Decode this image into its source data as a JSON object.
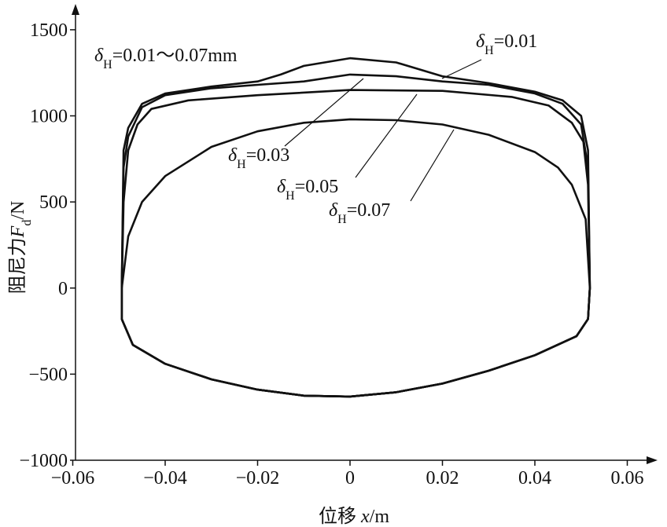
{
  "chart_data": {
    "type": "line",
    "annotation": {
      "symbol": "δ",
      "sub": "H",
      "text": "=0.01～0.07mm"
    },
    "x_label": {
      "prefix": "位移 ",
      "var": "x",
      "unit": "/m"
    },
    "y_label": {
      "prefix": "阻尼力",
      "var": "F",
      "sub": "d",
      "unit": "/N"
    },
    "xlim": [
      -0.06,
      0.0665
    ],
    "ylim": [
      -1000,
      1650
    ],
    "xticks": [
      {
        "value": -0.06,
        "label": "−0.06"
      },
      {
        "value": -0.04,
        "label": "−0.04"
      },
      {
        "value": -0.02,
        "label": "−0.02"
      },
      0,
      0.02,
      0.04,
      0.06
    ],
    "yticks": [
      {
        "value": -1000,
        "label": "−1000"
      },
      {
        "value": -500,
        "label": "−500"
      },
      0,
      500,
      1000,
      1500
    ],
    "series": [
      {
        "name": {
          "symbol": "δ",
          "sub": "H",
          "text": "=0.01"
        },
        "color": "#111111",
        "x": [
          -0.0494,
          -0.049,
          -0.048,
          -0.045,
          -0.04,
          -0.03,
          -0.02,
          -0.015,
          -0.01,
          0,
          0.01,
          0.02,
          0.03,
          0.04,
          0.046,
          0.05,
          0.0515,
          0.0519,
          0.0515,
          0.049,
          0.04,
          0.03,
          0.02,
          0.01,
          0,
          -0.01,
          -0.02,
          -0.03,
          -0.04,
          -0.047,
          -0.0494,
          -0.0494
        ],
        "y": [
          0,
          800,
          930,
          1070,
          1130,
          1170,
          1200,
          1240,
          1290,
          1335,
          1310,
          1230,
          1190,
          1140,
          1090,
          1000,
          800,
          0,
          -180,
          -280,
          -390,
          -480,
          -555,
          -605,
          -630,
          -625,
          -590,
          -530,
          -440,
          -330,
          -180,
          0
        ]
      },
      {
        "name": {
          "symbol": "δ",
          "sub": "H",
          "text": "=0.03"
        },
        "color": "#111111",
        "x": [
          -0.0494,
          -0.049,
          -0.048,
          -0.045,
          -0.04,
          -0.03,
          -0.02,
          -0.01,
          0,
          0.01,
          0.02,
          0.03,
          0.04,
          0.046,
          0.05,
          0.0515,
          0.0519,
          0.0515,
          0.049,
          0.04,
          0.03,
          0.02,
          0.01,
          0,
          -0.01,
          -0.02,
          -0.03,
          -0.04,
          -0.047,
          -0.0494,
          -0.0494
        ],
        "y": [
          0,
          700,
          880,
          1050,
          1120,
          1160,
          1180,
          1200,
          1240,
          1230,
          1200,
          1180,
          1130,
          1070,
          950,
          700,
          0,
          -180,
          -280,
          -390,
          -480,
          -555,
          -605,
          -630,
          -625,
          -590,
          -530,
          -440,
          -330,
          -180,
          0
        ]
      },
      {
        "name": {
          "symbol": "δ",
          "sub": "H",
          "text": "=0.05"
        },
        "color": "#111111",
        "x": [
          -0.0494,
          -0.049,
          -0.048,
          -0.046,
          -0.043,
          -0.035,
          -0.02,
          0,
          0.02,
          0.035,
          0.043,
          0.048,
          0.0505,
          0.0515,
          0.0519,
          0.0515,
          0.049,
          0.04,
          0.03,
          0.02,
          0.01,
          0,
          -0.01,
          -0.02,
          -0.03,
          -0.04,
          -0.047,
          -0.0494,
          -0.0494
        ],
        "y": [
          0,
          500,
          800,
          950,
          1040,
          1090,
          1120,
          1150,
          1145,
          1110,
          1060,
          960,
          850,
          600,
          0,
          -180,
          -280,
          -390,
          -480,
          -555,
          -605,
          -630,
          -625,
          -590,
          -530,
          -440,
          -330,
          -180,
          0
        ]
      },
      {
        "name": {
          "symbol": "δ",
          "sub": "H",
          "text": "=0.07"
        },
        "color": "#111111",
        "x": [
          -0.0494,
          -0.048,
          -0.045,
          -0.04,
          -0.03,
          -0.02,
          -0.01,
          0,
          0.01,
          0.02,
          0.03,
          0.04,
          0.045,
          0.048,
          0.051,
          0.0519,
          0.0515,
          0.049,
          0.04,
          0.03,
          0.02,
          0.01,
          0,
          -0.01,
          -0.02,
          -0.03,
          -0.04,
          -0.047,
          -0.0494,
          -0.0494
        ],
        "y": [
          0,
          300,
          500,
          650,
          820,
          910,
          960,
          980,
          975,
          950,
          890,
          790,
          700,
          600,
          400,
          0,
          -180,
          -280,
          -390,
          -480,
          -555,
          -605,
          -630,
          -625,
          -590,
          -530,
          -440,
          -330,
          -180,
          0
        ]
      }
    ]
  }
}
